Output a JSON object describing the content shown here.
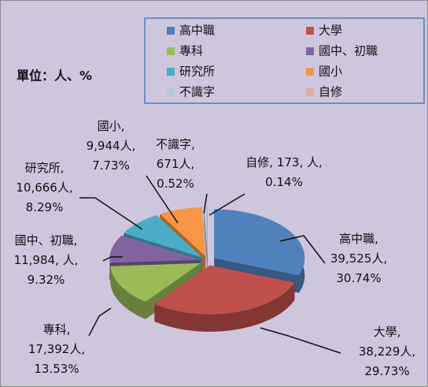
{
  "chart_data": {
    "type": "pie",
    "title": "單位：人、%",
    "categories": [
      "高中職",
      "大學",
      "專科",
      "國中、初職",
      "研究所",
      "國小",
      "不識字",
      "自修"
    ],
    "values": [
      39525,
      38229,
      17392,
      11984,
      10666,
      9944,
      671,
      173
    ],
    "value_labels": [
      "39,525人",
      "38,229人",
      "17,392人",
      "11,984",
      "10,666人",
      "9,944人",
      "671人",
      "173"
    ],
    "percentages": [
      30.74,
      29.73,
      13.53,
      9.32,
      8.29,
      7.73,
      0.52,
      0.14
    ],
    "percentage_labels": [
      "30.74%",
      "29.73%",
      "13.53%",
      "人, 9.32%",
      "8.29%",
      "7.73%",
      "0.52%",
      "人, 0.14%"
    ],
    "separator": ",",
    "colors": [
      "#4f81bd",
      "#c0504d",
      "#9bbb59",
      "#8064a2",
      "#4bacc6",
      "#f79646",
      "#b9c7e3",
      "#e6a6a4"
    ],
    "legend": "top-right"
  }
}
